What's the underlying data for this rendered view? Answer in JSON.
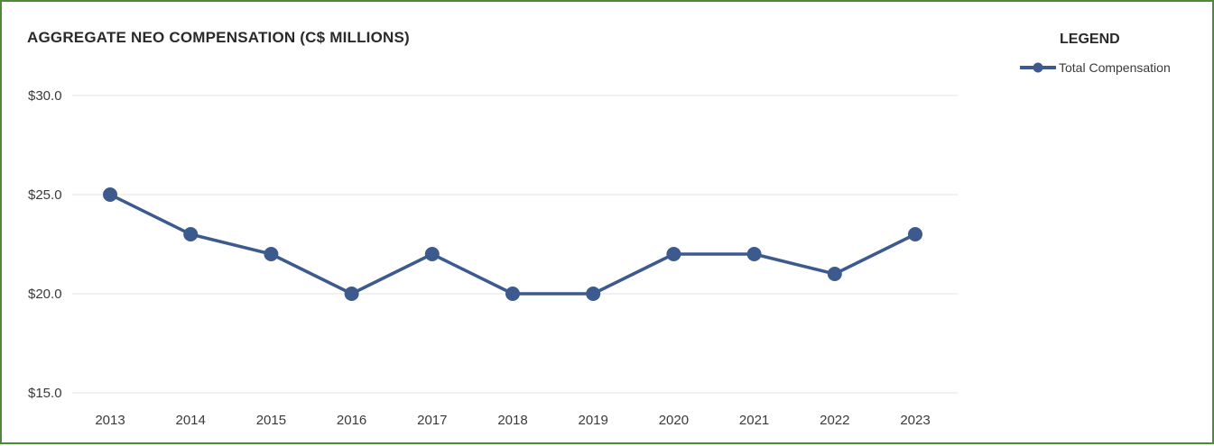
{
  "chart_data": {
    "type": "line",
    "title": "AGGREGATE NEO COMPENSATION (C$ MILLIONS)",
    "xlabel": "",
    "ylabel": "",
    "categories": [
      "2013",
      "2014",
      "2015",
      "2016",
      "2017",
      "2018",
      "2019",
      "2020",
      "2021",
      "2022",
      "2023"
    ],
    "series": [
      {
        "name": "Total Compensation",
        "values": [
          25,
          23,
          22,
          20,
          22,
          20,
          20,
          22,
          22,
          21,
          23
        ]
      }
    ],
    "ylim": [
      15,
      30
    ],
    "yticks": [
      15,
      20,
      25,
      30
    ],
    "ytick_labels": [
      "$15.0",
      "$20.0",
      "$25.0",
      "$30.0"
    ],
    "grid": true,
    "legend_title": "LEGEND",
    "legend_position": "top-right",
    "colors": {
      "series": "#3d5a8f",
      "grid": "#e3e3e3",
      "frame": "#4f8a3c"
    }
  }
}
